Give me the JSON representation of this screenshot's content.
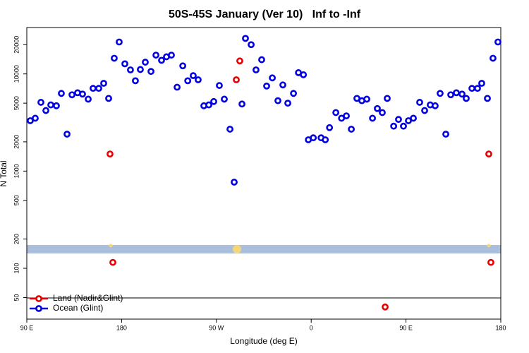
{
  "chart_data": {
    "type": "scatter",
    "title": "50S-45S January (Ver 10)   Inf to -Inf",
    "x_label": "Longitude (deg E)",
    "y_label": "N Total",
    "log_y": true,
    "legend": "bottom-left",
    "xlim": [
      90,
      540
    ],
    "xticks": [
      {
        "value": 90,
        "label": "90 E"
      },
      180,
      {
        "value": 270,
        "label": "90 W"
      },
      {
        "value": 360,
        "label": "0"
      },
      {
        "value": 450,
        "label": "90 E"
      },
      {
        "value": 540,
        "label": "180"
      }
    ],
    "ylim": [
      30,
      30000
    ],
    "yticks": [
      50,
      100,
      200,
      500,
      1000,
      2000,
      5000,
      10000,
      20000
    ],
    "series": [
      {
        "name": "Land (Nadir&Glint)",
        "color": "#e80000",
        "x": [
          169,
          171.7,
          288.9,
          292.2,
          430.2,
          528.6,
          530.6
        ],
        "values": [
          1500,
          115,
          8700,
          13600,
          40,
          1500,
          115
        ]
      },
      {
        "name": "Ocean (Glint)",
        "color": "#0000e0",
        "x": [
          93.3,
          98,
          103.4,
          108.1,
          112.8,
          118.1,
          122.8,
          128.2,
          132.9,
          138.2,
          142.9,
          148.3,
          152.9,
          158.3,
          163,
          167.7,
          173,
          177.7,
          183.1,
          188.4,
          193.1,
          197.8,
          202.5,
          207.9,
          212.6,
          217.9,
          222.6,
          227.3,
          232.7,
          238.1,
          242.8,
          248,
          252.7,
          258.1,
          262.8,
          267.5,
          272.8,
          277.5,
          282.9,
          286.9,
          294.3,
          297.6,
          303,
          307.6,
          313,
          317.7,
          323.1,
          328.4,
          333.1,
          337.8,
          343.2,
          347.9,
          352.6,
          357.3,
          362,
          369.4,
          373.4,
          377.4,
          383.4,
          388.8,
          393.4,
          398.1,
          403.4,
          408.1,
          412.8,
          418.2,
          422.8,
          427.5,
          432.2,
          438.3,
          442.9,
          447.6,
          452.3,
          457,
          463,
          467.7,
          473,
          477.7,
          482.4,
          487.8,
          492.5,
          497.8,
          503.2,
          507.2,
          512.6,
          517.9,
          521.9,
          527.3,
          532.6,
          537.3
        ],
        "values": [
          3300,
          3500,
          5100,
          4200,
          4800,
          4700,
          6300,
          2400,
          6100,
          6400,
          6200,
          5500,
          7100,
          7100,
          8000,
          5600,
          14500,
          21300,
          12700,
          11000,
          8500,
          11100,
          13200,
          10600,
          15600,
          13800,
          15000,
          15600,
          7300,
          12100,
          8500,
          9600,
          8700,
          4700,
          4800,
          5200,
          7600,
          5500,
          2700,
          770,
          4900,
          23200,
          20000,
          11000,
          14000,
          7500,
          9100,
          5300,
          7700,
          5000,
          6300,
          10300,
          9800,
          2100,
          2200,
          2200,
          2100,
          2800,
          4000,
          3500,
          3700,
          2700,
          5600,
          5300,
          5500,
          3500,
          4400,
          4000,
          5600,
          2900,
          3400,
          2900,
          3300,
          3500,
          5100,
          4200,
          4800,
          4700,
          6300,
          2400,
          6100,
          6400,
          6200,
          5600,
          7100,
          7100,
          8000,
          5600,
          14500,
          21300
        ]
      }
    ]
  }
}
